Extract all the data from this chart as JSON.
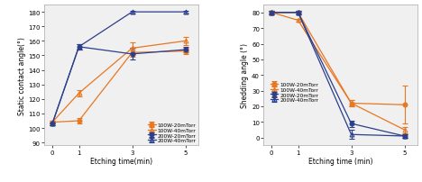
{
  "x": [
    0,
    1,
    3,
    5
  ],
  "left": {
    "xlabel": "Etching time(min)",
    "ylabel": "Static contact angle(°)",
    "ylim": [
      88,
      185
    ],
    "yticks": [
      90,
      100,
      110,
      120,
      130,
      140,
      150,
      160,
      170,
      180
    ],
    "xlim": [
      -0.3,
      5.5
    ],
    "series": [
      {
        "label": "100W-20mTorr",
        "y": [
          104,
          105,
          152,
          153
        ],
        "yerr": [
          1,
          2,
          3,
          2
        ],
        "color": "#E87722",
        "marker": "o",
        "fillstyle": "full"
      },
      {
        "label": "100W-40mTorr",
        "y": [
          104,
          124,
          155,
          160
        ],
        "yerr": [
          1,
          2,
          4,
          3
        ],
        "color": "#E87722",
        "marker": "^",
        "fillstyle": "none"
      },
      {
        "label": "200W-20mTorr",
        "y": [
          103,
          156,
          151,
          154
        ],
        "yerr": [
          1,
          2,
          4,
          2
        ],
        "color": "#2B3F8C",
        "marker": "o",
        "fillstyle": "full"
      },
      {
        "label": "200W-40mTorr",
        "y": [
          103,
          156,
          180,
          180
        ],
        "yerr": [
          1,
          2,
          1,
          1
        ],
        "color": "#2B3F8C",
        "marker": "^",
        "fillstyle": "none"
      }
    ]
  },
  "right": {
    "xlabel": "Etching time (min)",
    "ylabel": "Shedding angle (°)",
    "ylim": [
      -5,
      85
    ],
    "yticks": [
      0,
      10,
      20,
      30,
      40,
      50,
      60,
      70,
      80
    ],
    "xlim": [
      -0.3,
      5.5
    ],
    "series": [
      {
        "label": "100W-20mTorr",
        "y": [
          80,
          80,
          22,
          21
        ],
        "yerr": [
          1,
          1,
          2,
          12
        ],
        "color": "#E87722",
        "marker": "o",
        "fillstyle": "full"
      },
      {
        "label": "100W-40mTorr",
        "y": [
          80,
          75,
          22,
          5
        ],
        "yerr": [
          1,
          1,
          2,
          2
        ],
        "color": "#E87722",
        "marker": "^",
        "fillstyle": "none"
      },
      {
        "label": "200W-20mTorr",
        "y": [
          80,
          80,
          9,
          1
        ],
        "yerr": [
          1,
          1,
          2,
          1
        ],
        "color": "#2B3F8C",
        "marker": "o",
        "fillstyle": "full"
      },
      {
        "label": "200W-40mTorr",
        "y": [
          80,
          80,
          2,
          1
        ],
        "yerr": [
          1,
          1,
          3,
          1
        ],
        "color": "#2B3F8C",
        "marker": "^",
        "fillstyle": "none"
      }
    ]
  },
  "bg_color": "#ffffff",
  "plot_bg": "#f0f0f0",
  "spine_color": "#aaaaaa"
}
